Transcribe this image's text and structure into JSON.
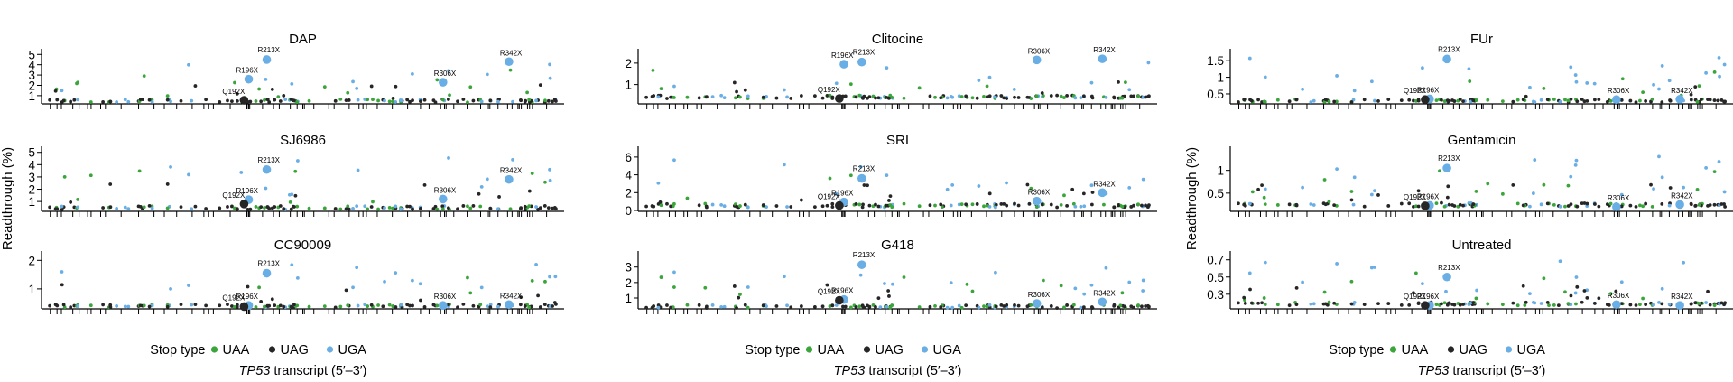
{
  "colors": {
    "UAA": "#3aa53a",
    "UAG": "#262626",
    "UGA": "#6aaee6"
  },
  "figure": {
    "ylabel": "Readthrough (%)",
    "xlabel_italic": "TP53",
    "xlabel_rest": " transcript (5′–3′)",
    "legend_title": "Stop type",
    "legend_items": [
      "UAA",
      "UAG",
      "UGA"
    ]
  },
  "chart_data": [
    {
      "type": "scatter",
      "title": "DAP",
      "ylim": [
        0.2,
        5.2
      ],
      "yticks": [
        1,
        2,
        3,
        4,
        5
      ],
      "baseline": 0.35,
      "highlight_points": [
        {
          "label": "R213X",
          "x": 0.43,
          "y": 4.5,
          "stop": "UGA"
        },
        {
          "label": "R196X",
          "x": 0.395,
          "y": 2.6,
          "stop": "UGA"
        },
        {
          "label": "Q192X",
          "x": 0.386,
          "y": 0.55,
          "stop": "UAG"
        },
        {
          "label": "R306X",
          "x": 0.772,
          "y": 2.3,
          "stop": "UGA"
        },
        {
          "label": "R342X",
          "x": 0.9,
          "y": 4.3,
          "stop": "UGA"
        }
      ]
    },
    {
      "type": "scatter",
      "title": "SJ6986",
      "ylim": [
        0.2,
        5.2
      ],
      "yticks": [
        1,
        2,
        3,
        4,
        5
      ],
      "baseline": 0.35,
      "highlight_points": [
        {
          "label": "R213X",
          "x": 0.43,
          "y": 3.6,
          "stop": "UGA"
        },
        {
          "label": "R196X",
          "x": 0.395,
          "y": 1.15,
          "stop": "UGA"
        },
        {
          "label": "Q192X",
          "x": 0.386,
          "y": 0.8,
          "stop": "UAG"
        },
        {
          "label": "R306X",
          "x": 0.772,
          "y": 1.2,
          "stop": "UGA"
        },
        {
          "label": "R342X",
          "x": 0.9,
          "y": 2.8,
          "stop": "UGA"
        }
      ]
    },
    {
      "type": "scatter",
      "title": "CC90009",
      "ylim": [
        0.3,
        2.2
      ],
      "yticks": [
        1,
        2
      ],
      "baseline": 0.35,
      "highlight_points": [
        {
          "label": "R213X",
          "x": 0.43,
          "y": 1.55,
          "stop": "UGA"
        },
        {
          "label": "R196X",
          "x": 0.395,
          "y": 0.42,
          "stop": "UGA"
        },
        {
          "label": "Q192X",
          "x": 0.386,
          "y": 0.38,
          "stop": "UAG"
        },
        {
          "label": "R306X",
          "x": 0.772,
          "y": 0.42,
          "stop": "UGA"
        },
        {
          "label": "R342X",
          "x": 0.9,
          "y": 0.45,
          "stop": "UGA"
        }
      ]
    },
    {
      "type": "scatter",
      "title": "Clitocine",
      "ylim": [
        0.1,
        2.5
      ],
      "yticks": [
        1,
        2
      ],
      "baseline": 0.35,
      "highlight_points": [
        {
          "label": "R213X",
          "x": 0.43,
          "y": 2.05,
          "stop": "UGA"
        },
        {
          "label": "R196X",
          "x": 0.395,
          "y": 1.95,
          "stop": "UGA"
        },
        {
          "label": "Q192X",
          "x": 0.386,
          "y": 0.35,
          "stop": "UAG"
        },
        {
          "label": "R306X",
          "x": 0.772,
          "y": 2.15,
          "stop": "UGA"
        },
        {
          "label": "R342X",
          "x": 0.9,
          "y": 2.2,
          "stop": "UGA"
        }
      ]
    },
    {
      "type": "scatter",
      "title": "SRI",
      "ylim": [
        -0.1,
        6.8
      ],
      "yticks": [
        0,
        2,
        4,
        6
      ],
      "baseline": 0.35,
      "highlight_points": [
        {
          "label": "R213X",
          "x": 0.43,
          "y": 3.6,
          "stop": "UGA"
        },
        {
          "label": "R196X",
          "x": 0.395,
          "y": 0.95,
          "stop": "UGA"
        },
        {
          "label": "Q192X",
          "x": 0.386,
          "y": 0.55,
          "stop": "UAG"
        },
        {
          "label": "R306X",
          "x": 0.772,
          "y": 1.05,
          "stop": "UGA"
        },
        {
          "label": "R342X",
          "x": 0.9,
          "y": 2.0,
          "stop": "UGA"
        }
      ]
    },
    {
      "type": "scatter",
      "title": "G418",
      "ylim": [
        0.3,
        3.8
      ],
      "yticks": [
        1,
        2,
        3
      ],
      "baseline": 0.35,
      "highlight_points": [
        {
          "label": "R213X",
          "x": 0.43,
          "y": 3.15,
          "stop": "UGA"
        },
        {
          "label": "R196X",
          "x": 0.395,
          "y": 0.9,
          "stop": "UGA"
        },
        {
          "label": "Q192X",
          "x": 0.386,
          "y": 0.85,
          "stop": "UAG"
        },
        {
          "label": "R306X",
          "x": 0.772,
          "y": 0.65,
          "stop": "UGA"
        },
        {
          "label": "R342X",
          "x": 0.9,
          "y": 0.75,
          "stop": "UGA"
        }
      ]
    },
    {
      "type": "scatter",
      "title": "FUr",
      "ylim": [
        0.2,
        1.75
      ],
      "yticks": [
        0.5,
        1.0,
        1.5
      ],
      "baseline": 0.25,
      "highlight_points": [
        {
          "label": "R213X",
          "x": 0.43,
          "y": 1.55,
          "stop": "UGA"
        },
        {
          "label": "R196X",
          "x": 0.395,
          "y": 0.35,
          "stop": "UGA"
        },
        {
          "label": "Q192X",
          "x": 0.386,
          "y": 0.33,
          "stop": "UAG"
        },
        {
          "label": "R306X",
          "x": 0.772,
          "y": 0.33,
          "stop": "UGA"
        },
        {
          "label": "R342X",
          "x": 0.9,
          "y": 0.34,
          "stop": "UGA"
        }
      ]
    },
    {
      "type": "scatter",
      "title": "Gentamicin",
      "ylim": [
        0.1,
        1.45
      ],
      "yticks": [
        0.5,
        1.0
      ],
      "baseline": 0.2,
      "highlight_points": [
        {
          "label": "R213X",
          "x": 0.43,
          "y": 1.05,
          "stop": "UGA"
        },
        {
          "label": "R196X",
          "x": 0.395,
          "y": 0.23,
          "stop": "UGA"
        },
        {
          "label": "Q192X",
          "x": 0.386,
          "y": 0.22,
          "stop": "UAG"
        },
        {
          "label": "R306X",
          "x": 0.772,
          "y": 0.2,
          "stop": "UGA"
        },
        {
          "label": "R342X",
          "x": 0.9,
          "y": 0.25,
          "stop": "UGA"
        }
      ]
    },
    {
      "type": "scatter",
      "title": "Untreated",
      "ylim": [
        0.13,
        0.76
      ],
      "yticks": [
        0.3,
        0.5,
        0.7
      ],
      "baseline": 0.17,
      "highlight_points": [
        {
          "label": "R213X",
          "x": 0.43,
          "y": 0.5,
          "stop": "UGA"
        },
        {
          "label": "R196X",
          "x": 0.395,
          "y": 0.17,
          "stop": "UGA"
        },
        {
          "label": "Q192X",
          "x": 0.386,
          "y": 0.17,
          "stop": "UAG"
        },
        {
          "label": "R306X",
          "x": 0.772,
          "y": 0.18,
          "stop": "UGA"
        },
        {
          "label": "R342X",
          "x": 0.9,
          "y": 0.17,
          "stop": "UGA"
        }
      ]
    }
  ]
}
